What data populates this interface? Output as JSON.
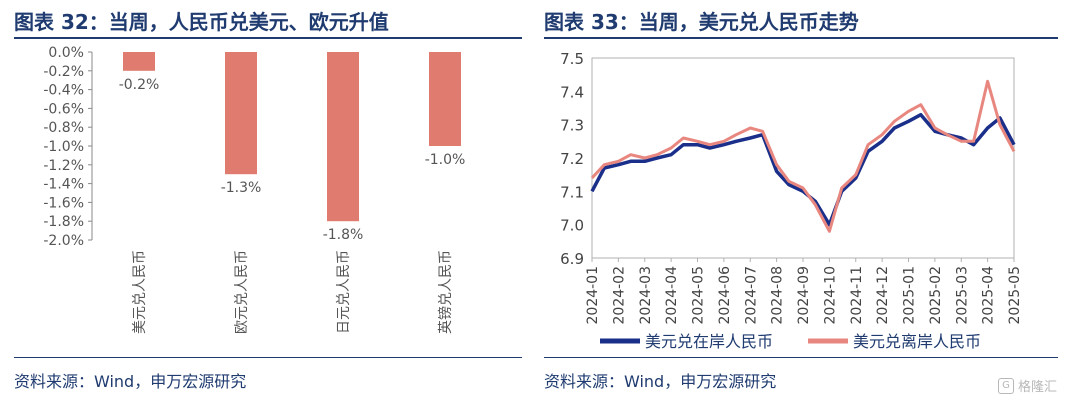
{
  "left_panel": {
    "title": "图表 32：当周，人民币兑美元、欧元升值",
    "source": "资料来源：Wind，申万宏源研究"
  },
  "right_panel": {
    "title": "图表 33：当周，美元兑人民币走势",
    "source": "资料来源：Wind，申万宏源研究"
  },
  "watermark": {
    "text": "格隆汇",
    "icon": "gelonghui-logo-icon"
  },
  "colors": {
    "bar": "#e07b6f",
    "onshore": "#1a2f8a",
    "offshore": "#e8877f",
    "text": "#1f3b70",
    "axis": "#8a8a8a"
  },
  "chart_data": [
    {
      "type": "bar",
      "title": "",
      "categories": [
        "美元兑人民币",
        "欧元兑人民币",
        "日元兑人民币",
        "英镑兑人民币"
      ],
      "values": [
        -0.2,
        -1.3,
        -1.8,
        -1.0
      ],
      "data_labels": [
        "-0.2%",
        "-1.3%",
        "-1.8%",
        "-1.0%"
      ],
      "ylim": [
        -2.0,
        0.0
      ],
      "yticks": [
        0.0,
        -0.2,
        -0.4,
        -0.6,
        -0.8,
        -1.0,
        -1.2,
        -1.4,
        -1.6,
        -1.8,
        -2.0
      ],
      "ytick_labels": [
        "0.0%",
        "-0.2%",
        "-0.4%",
        "-0.6%",
        "-0.8%",
        "-1.0%",
        "-1.2%",
        "-1.4%",
        "-1.6%",
        "-1.8%",
        "-2.0%"
      ],
      "grid": false
    },
    {
      "type": "line",
      "title": "",
      "ylim": [
        6.9,
        7.5
      ],
      "yticks": [
        6.9,
        7.0,
        7.1,
        7.2,
        7.3,
        7.4,
        7.5
      ],
      "ytick_labels": [
        "6.9",
        "7.0",
        "7.1",
        "7.2",
        "7.3",
        "7.4",
        "7.5"
      ],
      "x_labels": [
        "2024-01",
        "2024-02",
        "2024-03",
        "2024-04",
        "2024-05",
        "2024-06",
        "2024-07",
        "2024-08",
        "2024-09",
        "2024-10",
        "2024-11",
        "2024-12",
        "2025-01",
        "2025-02",
        "2025-03",
        "2025-04",
        "2025-05"
      ],
      "legend": "bottom",
      "grid": false,
      "series": [
        {
          "name": "美元兑在岸人民币",
          "x": [
            "2024-01",
            "2024-01-15",
            "2024-02",
            "2024-02-15",
            "2024-03",
            "2024-03-15",
            "2024-04",
            "2024-04-15",
            "2024-05",
            "2024-05-15",
            "2024-06",
            "2024-06-15",
            "2024-07",
            "2024-07-15",
            "2024-08",
            "2024-08-15",
            "2024-09",
            "2024-09-15",
            "2024-10",
            "2024-10-15",
            "2024-11",
            "2024-11-15",
            "2024-12",
            "2024-12-15",
            "2025-01",
            "2025-01-15",
            "2025-02",
            "2025-02-15",
            "2025-03",
            "2025-03-15",
            "2025-04",
            "2025-04-15",
            "2025-05"
          ],
          "values": [
            7.1,
            7.17,
            7.18,
            7.19,
            7.19,
            7.2,
            7.21,
            7.24,
            7.24,
            7.23,
            7.24,
            7.25,
            7.26,
            7.27,
            7.16,
            7.12,
            7.1,
            7.07,
            7.0,
            7.1,
            7.14,
            7.22,
            7.25,
            7.29,
            7.31,
            7.33,
            7.28,
            7.27,
            7.26,
            7.24,
            7.29,
            7.32,
            7.24
          ]
        },
        {
          "name": "美元兑离岸人民币",
          "x": [
            "2024-01",
            "2024-01-15",
            "2024-02",
            "2024-02-15",
            "2024-03",
            "2024-03-15",
            "2024-04",
            "2024-04-15",
            "2024-05",
            "2024-05-15",
            "2024-06",
            "2024-06-15",
            "2024-07",
            "2024-07-15",
            "2024-08",
            "2024-08-15",
            "2024-09",
            "2024-09-15",
            "2024-10",
            "2024-10-15",
            "2024-11",
            "2024-11-15",
            "2024-12",
            "2024-12-15",
            "2025-01",
            "2025-01-15",
            "2025-02",
            "2025-02-15",
            "2025-03",
            "2025-03-15",
            "2025-04",
            "2025-04-15",
            "2025-05"
          ],
          "values": [
            7.14,
            7.18,
            7.19,
            7.21,
            7.2,
            7.21,
            7.23,
            7.26,
            7.25,
            7.24,
            7.25,
            7.27,
            7.29,
            7.28,
            7.18,
            7.13,
            7.11,
            7.06,
            6.98,
            7.11,
            7.15,
            7.24,
            7.27,
            7.31,
            7.34,
            7.36,
            7.29,
            7.27,
            7.25,
            7.25,
            7.43,
            7.3,
            7.22
          ]
        }
      ]
    }
  ]
}
